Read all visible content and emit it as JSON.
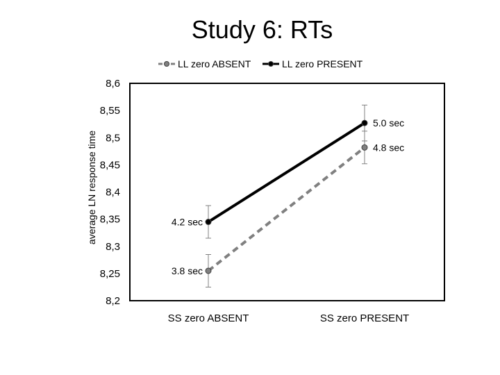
{
  "slide": {
    "title": "Study 6: RTs"
  },
  "chart_data": {
    "type": "line",
    "title": "",
    "xlabel": "",
    "ylabel": "average LN response time",
    "categories": [
      "SS zero ABSENT",
      "SS zero PRESENT"
    ],
    "ylim": [
      8.2,
      8.6
    ],
    "yticks": [
      8.2,
      8.25,
      8.3,
      8.35,
      8.4,
      8.45,
      8.5,
      8.55,
      8.6
    ],
    "ytick_labels": [
      "8,2",
      "8,25",
      "8,3",
      "8,35",
      "8,4",
      "8,45",
      "8,5",
      "8,55",
      "8,6"
    ],
    "grid": false,
    "legend": "top",
    "series": [
      {
        "name": "LL zero ABSENT",
        "values": [
          8.255,
          8.482
        ],
        "error": [
          0.03,
          0.03
        ],
        "data_labels": [
          "3.8 sec",
          "4.8 sec"
        ],
        "color": "#808080",
        "line_style": "dashed",
        "marker_color": "#808080"
      },
      {
        "name": "LL zero PRESENT",
        "values": [
          8.345,
          8.527
        ],
        "error": [
          0.03,
          0.033
        ],
        "data_labels": [
          "4.2 sec",
          "5.0 sec"
        ],
        "color": "#000000",
        "line_style": "solid",
        "marker_color": "#000000"
      }
    ]
  }
}
